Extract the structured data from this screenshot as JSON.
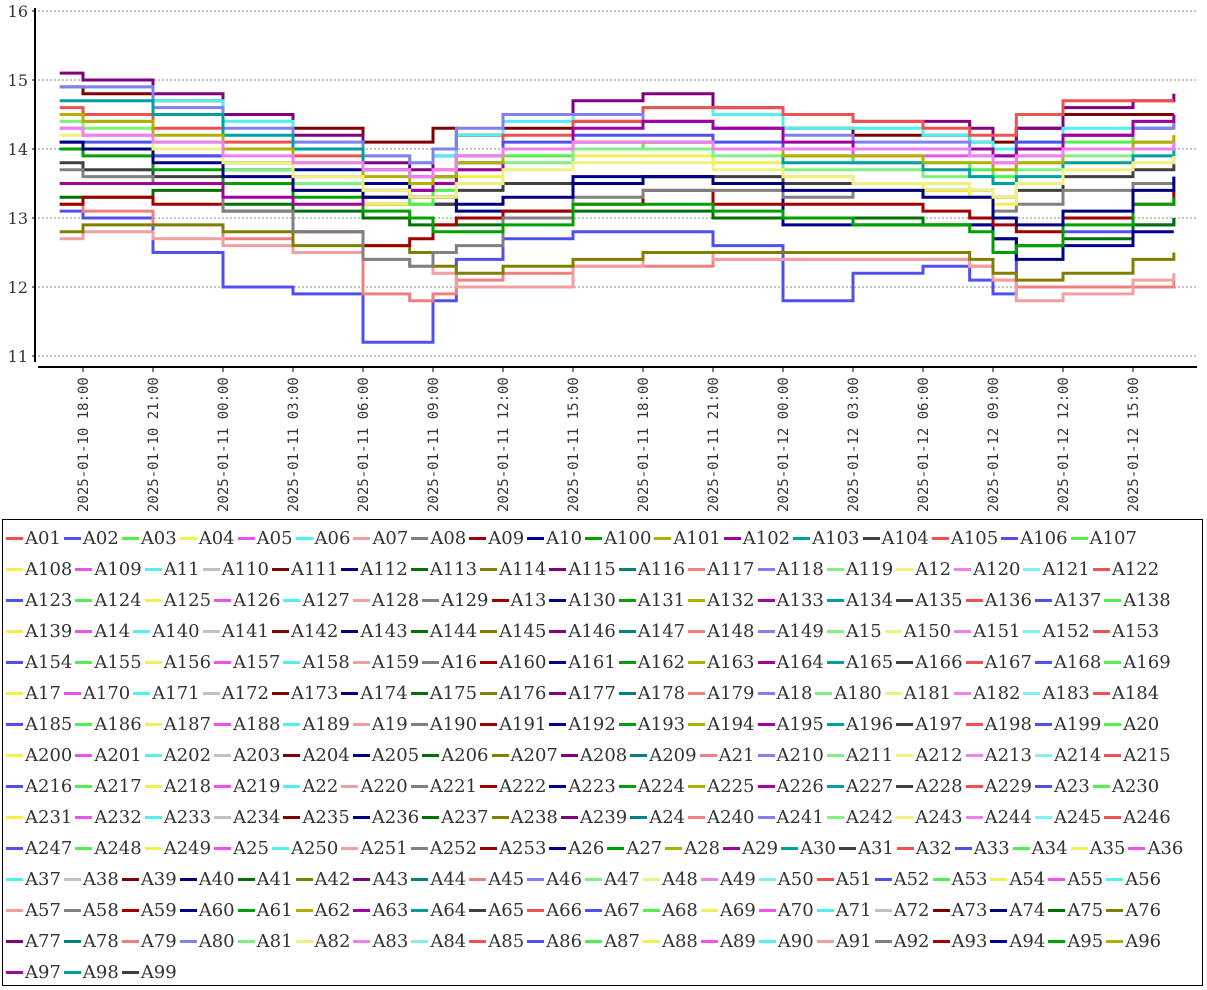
{
  "chart_data": {
    "type": "line",
    "step": true,
    "title": "",
    "xlabel": "",
    "ylabel": "",
    "ylim": [
      11,
      16
    ],
    "yticks": [
      "11",
      "12",
      "13",
      "14",
      "15",
      "16"
    ],
    "xticks": [
      "2025-01-10 18:00",
      "2025-01-10 21:00",
      "2025-01-11 00:00",
      "2025-01-11 03:00",
      "2025-01-11 06:00",
      "2025-01-11 09:00",
      "2025-01-11 12:00",
      "2025-01-11 15:00",
      "2025-01-11 18:00",
      "2025-01-11 21:00",
      "2025-01-12 00:00",
      "2025-01-12 03:00",
      "2025-01-12 06:00",
      "2025-01-12 09:00",
      "2025-01-12 12:00",
      "2025-01-12 15:00"
    ],
    "grid": "horizontal-dotted",
    "legend_position": "bottom",
    "palette": [
      "#f05050",
      "#5050f0",
      "#50f050",
      "#f0f050",
      "#f050f0",
      "#50f0f0",
      "#f0a0a0",
      "#808080",
      "#a00000",
      "#000090",
      "#00a000",
      "#b0b000",
      "#a000a0",
      "#00a0a0",
      "#404040",
      "#f05050",
      "#5050f0",
      "#50f050",
      "#f0f050",
      "#f050f0",
      "#50f0f0",
      "#c0c0c0",
      "#800000",
      "#000080",
      "#007000",
      "#808000",
      "#800080",
      "#008080",
      "#f08080",
      "#8080f0",
      "#80f080",
      "#f0f080",
      "#f080f0",
      "#80f0f0"
    ],
    "series_count": 253,
    "x": [
      "2025-01-10 17:00",
      "2025-01-10 18:00",
      "2025-01-10 21:00",
      "2025-01-11 00:00",
      "2025-01-11 03:00",
      "2025-01-11 06:00",
      "2025-01-11 08:00",
      "2025-01-11 09:00",
      "2025-01-11 10:00",
      "2025-01-11 12:00",
      "2025-01-11 15:00",
      "2025-01-11 18:00",
      "2025-01-11 21:00",
      "2025-01-12 00:00",
      "2025-01-12 03:00",
      "2025-01-12 06:00",
      "2025-01-12 08:00",
      "2025-01-12 09:00",
      "2025-01-12 10:00",
      "2025-01-12 12:00",
      "2025-01-12 15:00",
      "2025-01-12 16:45"
    ],
    "series": [
      {
        "name": "A02",
        "values": [
          13.1,
          13.0,
          12.5,
          12.0,
          11.9,
          11.2,
          11.2,
          11.8,
          12.4,
          12.7,
          12.8,
          12.8,
          12.6,
          11.8,
          12.2,
          12.3,
          12.1,
          11.9,
          12.6,
          12.8,
          12.9,
          13.0
        ]
      },
      {
        "name": "A117",
        "values": [
          13.2,
          13.1,
          12.9,
          12.7,
          12.5,
          11.9,
          11.8,
          11.9,
          12.1,
          12.2,
          12.3,
          12.3,
          12.4,
          12.4,
          12.4,
          12.4,
          12.3,
          12.1,
          12.0,
          12.0,
          12.0,
          12.1
        ]
      },
      {
        "name": "A07",
        "values": [
          12.7,
          12.8,
          12.7,
          12.6,
          12.5,
          12.4,
          12.3,
          12.2,
          12.0,
          12.0,
          12.3,
          12.5,
          12.4,
          12.4,
          12.4,
          12.4,
          12.3,
          12.1,
          11.8,
          11.9,
          12.1,
          12.2
        ]
      },
      {
        "name": "A114",
        "values": [
          12.8,
          12.9,
          12.9,
          12.8,
          12.6,
          12.6,
          12.5,
          12.3,
          12.2,
          12.3,
          12.4,
          12.5,
          12.5,
          12.5,
          12.5,
          12.5,
          12.4,
          12.2,
          12.1,
          12.2,
          12.4,
          12.5
        ]
      },
      {
        "name": "A111",
        "values": [
          14.9,
          14.8,
          14.7,
          14.5,
          14.3,
          14.1,
          14.1,
          14.3,
          14.2,
          14.3,
          14.4,
          14.4,
          14.3,
          14.3,
          14.2,
          14.2,
          14.1,
          14.1,
          14.3,
          14.5,
          14.5,
          14.5
        ]
      },
      {
        "name": "A115",
        "values": [
          15.1,
          15.0,
          14.8,
          14.5,
          14.2,
          13.8,
          13.7,
          13.9,
          14.2,
          14.5,
          14.7,
          14.8,
          14.6,
          14.5,
          14.4,
          14.4,
          14.3,
          14.0,
          14.3,
          14.6,
          14.7,
          14.8
        ]
      },
      {
        "name": "A113",
        "values": [
          13.3,
          13.3,
          13.4,
          13.2,
          13.1,
          13.0,
          12.9,
          12.9,
          12.9,
          13.0,
          13.1,
          13.1,
          13.0,
          13.0,
          13.0,
          12.9,
          12.9,
          12.7,
          12.6,
          12.7,
          12.9,
          13.0
        ]
      },
      {
        "name": "A10",
        "values": [
          14.0,
          14.0,
          13.9,
          13.8,
          13.7,
          13.5,
          13.3,
          13.2,
          13.1,
          13.1,
          13.6,
          13.6,
          13.5,
          12.9,
          12.9,
          12.9,
          12.9,
          12.7,
          12.4,
          12.6,
          12.8,
          12.8
        ]
      },
      {
        "name": "A09",
        "values": [
          13.2,
          13.3,
          13.2,
          13.1,
          12.8,
          12.6,
          12.7,
          12.9,
          13.0,
          13.1,
          13.2,
          13.4,
          13.2,
          13.2,
          13.2,
          13.1,
          13.0,
          12.9,
          12.8,
          13.0,
          13.2,
          13.4
        ]
      },
      {
        "name": "A104",
        "values": [
          13.8,
          13.7,
          13.6,
          13.5,
          13.4,
          13.2,
          13.2,
          13.2,
          13.4,
          13.5,
          13.5,
          13.6,
          13.6,
          13.5,
          13.5,
          13.4,
          13.4,
          13.3,
          13.4,
          13.6,
          13.7,
          13.8
        ]
      },
      {
        "name": "A08",
        "values": [
          13.7,
          13.6,
          13.5,
          13.1,
          12.8,
          12.4,
          12.3,
          12.5,
          12.6,
          13.0,
          13.3,
          13.4,
          13.4,
          13.3,
          13.4,
          13.4,
          13.3,
          13.1,
          13.2,
          13.4,
          13.5,
          13.6
        ]
      },
      {
        "name": "A100",
        "values": [
          14.0,
          13.9,
          13.7,
          13.5,
          13.3,
          13.1,
          13.0,
          12.8,
          12.8,
          12.9,
          13.2,
          13.2,
          13.1,
          13.0,
          12.9,
          12.9,
          12.8,
          12.5,
          12.6,
          12.9,
          13.2,
          13.3
        ]
      },
      {
        "name": "A06",
        "values": [
          14.9,
          14.9,
          14.7,
          14.4,
          14.1,
          13.9,
          13.8,
          13.9,
          14.2,
          14.4,
          14.5,
          14.6,
          14.5,
          14.3,
          14.3,
          14.2,
          14.1,
          14.0,
          14.1,
          14.3,
          14.4,
          14.5
        ]
      },
      {
        "name": "A01",
        "values": [
          14.6,
          14.5,
          14.3,
          14.1,
          13.9,
          13.7,
          13.6,
          13.7,
          13.9,
          14.2,
          14.4,
          14.6,
          14.6,
          14.5,
          14.4,
          14.3,
          14.2,
          14.2,
          14.5,
          14.7,
          14.7,
          14.7
        ]
      },
      {
        "name": "A05",
        "values": [
          14.3,
          14.2,
          14.0,
          13.8,
          13.6,
          13.4,
          13.4,
          13.6,
          13.8,
          14.0,
          14.1,
          14.1,
          14.0,
          14.0,
          13.9,
          13.9,
          13.9,
          13.8,
          13.9,
          14.0,
          14.1,
          14.1
        ]
      },
      {
        "name": "A04",
        "values": [
          14.4,
          14.3,
          14.0,
          13.7,
          13.4,
          13.2,
          13.2,
          13.3,
          13.6,
          13.9,
          13.9,
          13.9,
          13.8,
          13.6,
          13.5,
          13.4,
          13.3,
          13.2,
          13.5,
          13.8,
          14.0,
          14.1
        ]
      },
      {
        "name": "A03",
        "values": [
          14.5,
          14.4,
          14.1,
          13.8,
          13.6,
          13.3,
          13.2,
          13.4,
          13.7,
          13.9,
          14.0,
          14.1,
          14.0,
          13.9,
          13.8,
          13.8,
          13.7,
          13.6,
          13.8,
          14.1,
          14.3,
          14.4
        ]
      },
      {
        "name": "A106",
        "values": [
          14.1,
          14.1,
          13.9,
          13.7,
          13.5,
          13.4,
          13.4,
          13.6,
          13.9,
          14.1,
          14.2,
          14.2,
          14.1,
          14.0,
          14.0,
          14.0,
          14.0,
          13.9,
          14.1,
          14.2,
          14.3,
          14.3
        ]
      },
      {
        "name": "A118",
        "values": [
          14.9,
          14.9,
          14.6,
          14.3,
          14.1,
          13.9,
          13.8,
          14.0,
          14.3,
          14.5,
          14.5,
          14.4,
          14.3,
          14.2,
          14.1,
          14.1,
          14.0,
          13.9,
          14.0,
          14.2,
          14.3,
          14.4
        ]
      },
      {
        "name": "A119",
        "values": [
          14.4,
          14.3,
          14.0,
          13.7,
          13.5,
          13.4,
          13.3,
          13.3,
          13.5,
          13.8,
          14.0,
          14.0,
          13.9,
          13.7,
          13.7,
          13.6,
          13.6,
          13.5,
          13.7,
          13.9,
          14.1,
          14.2
        ]
      },
      {
        "name": "A103",
        "values": [
          14.7,
          14.7,
          14.5,
          14.2,
          14.0,
          13.7,
          13.6,
          13.6,
          13.8,
          14.0,
          14.1,
          14.1,
          14.0,
          13.8,
          13.8,
          13.7,
          13.6,
          13.5,
          13.6,
          13.8,
          13.9,
          14.0
        ]
      },
      {
        "name": "A102",
        "values": [
          13.5,
          13.5,
          13.5,
          13.3,
          13.2,
          13.3,
          13.4,
          13.5,
          13.7,
          14.0,
          14.3,
          14.4,
          14.3,
          14.1,
          14.0,
          14.0,
          14.0,
          13.9,
          14.0,
          14.2,
          14.4,
          14.5
        ]
      },
      {
        "name": "A112",
        "values": [
          14.1,
          14.0,
          13.8,
          13.6,
          13.4,
          13.3,
          13.3,
          13.3,
          13.2,
          13.3,
          13.5,
          13.6,
          13.5,
          13.4,
          13.4,
          13.3,
          13.3,
          13.0,
          12.9,
          13.1,
          13.4,
          13.6
        ]
      },
      {
        "name": "A101",
        "values": [
          14.5,
          14.4,
          14.2,
          14.0,
          13.8,
          13.6,
          13.5,
          13.6,
          13.8,
          14.0,
          14.1,
          14.1,
          14.0,
          13.9,
          13.9,
          13.8,
          13.8,
          13.7,
          13.8,
          14.0,
          14.1,
          14.2
        ]
      },
      {
        "name": "A12",
        "values": [
          14.2,
          14.2,
          14.0,
          13.8,
          13.6,
          13.4,
          13.3,
          13.3,
          13.5,
          13.7,
          13.8,
          13.8,
          13.7,
          13.6,
          13.5,
          13.5,
          13.4,
          13.3,
          13.5,
          13.7,
          13.8,
          13.9
        ]
      },
      {
        "name": "A120",
        "values": [
          14.3,
          14.2,
          14.1,
          13.9,
          13.8,
          13.7,
          13.6,
          13.7,
          13.9,
          14.0,
          14.1,
          14.1,
          14.0,
          14.0,
          14.0,
          14.0,
          13.9,
          13.8,
          13.9,
          14.0,
          14.0,
          14.1
        ]
      }
    ]
  }
}
